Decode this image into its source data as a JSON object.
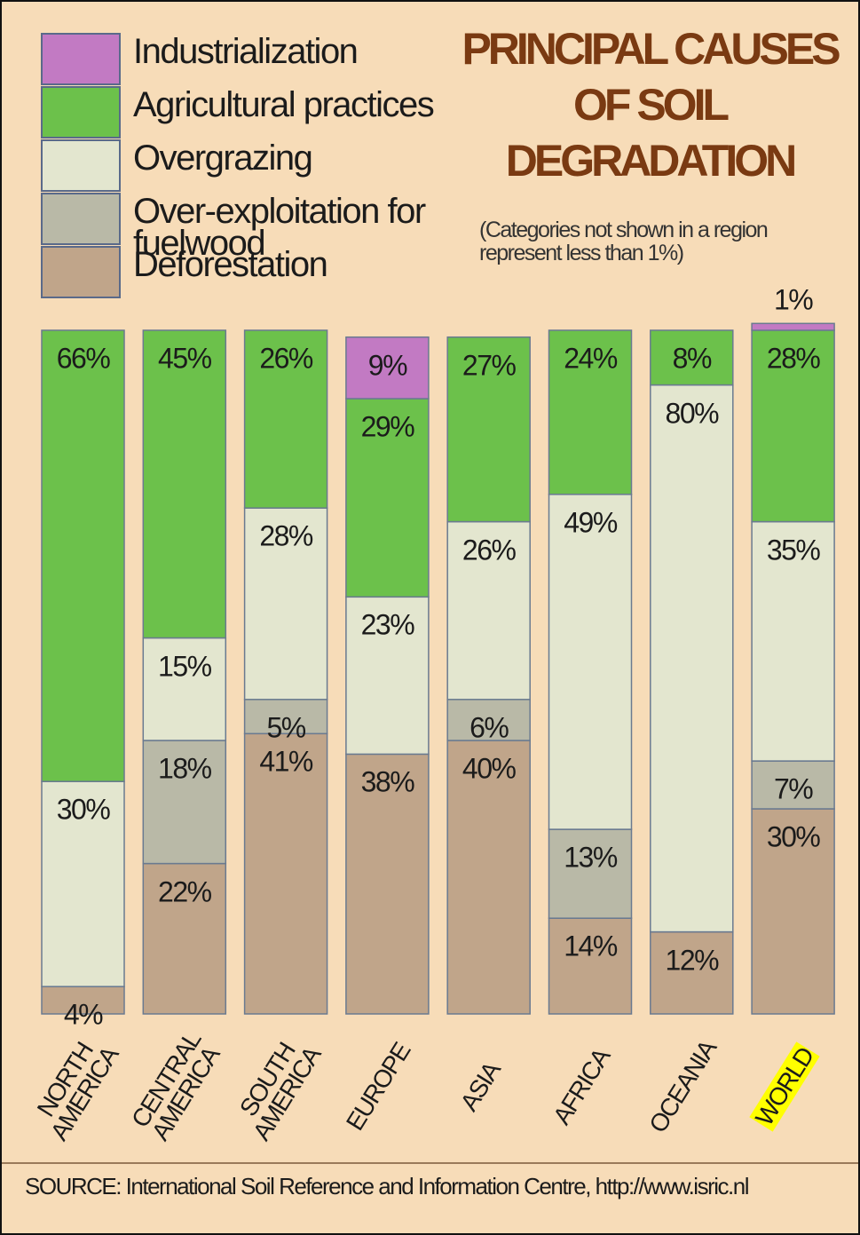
{
  "chart_data": {
    "type": "stacked_bar",
    "title": "PRINCIPAL CAUSES OF SOIL DEGRADATION",
    "note": "(Categories not shown in a region represent less than 1%)",
    "source": "SOURCE: International Soil Reference and Information Centre, http://www.isric.nl",
    "categories": [
      "NORTH AMERICA",
      "CENTRAL AMERICA",
      "SOUTH AMERICA",
      "EUROPE",
      "ASIA",
      "AFRICA",
      "OCEANIA",
      "WORLD"
    ],
    "series": [
      {
        "name": "Industrialization",
        "color": "#c27ac3",
        "values": [
          null,
          null,
          null,
          9,
          null,
          null,
          null,
          1
        ],
        "value_labels": [
          null,
          null,
          null,
          "9%",
          null,
          null,
          null,
          "1%"
        ]
      },
      {
        "name": "Agricultural practices",
        "color": "#6cc14b",
        "values": [
          66,
          45,
          26,
          29,
          27,
          24,
          8,
          28
        ],
        "value_labels": [
          "66%",
          "45%",
          "26%",
          "29%",
          "27%",
          "24%",
          "8%",
          "28%"
        ]
      },
      {
        "name": "Overgrazing",
        "color": "#e3e6cf",
        "values": [
          30,
          15,
          28,
          23,
          26,
          49,
          80,
          35
        ],
        "value_labels": [
          "30%",
          "15%",
          "28%",
          "23%",
          "26%",
          "49%",
          "80%",
          "35%"
        ]
      },
      {
        "name": "Over-exploitation for fuelwood",
        "color": "#b9b9a7",
        "values": [
          null,
          18,
          5,
          null,
          6,
          13,
          null,
          7
        ],
        "value_labels": [
          null,
          "18%",
          "5%",
          null,
          "6%",
          "13%",
          null,
          "7%"
        ]
      },
      {
        "name": "Deforestation",
        "color": "#c0a58a",
        "values": [
          4,
          22,
          41,
          38,
          40,
          14,
          12,
          30
        ],
        "value_labels": [
          "4%",
          "22%",
          "41%",
          "38%",
          "40%",
          "14%",
          "12%",
          "30%"
        ]
      }
    ]
  }
}
